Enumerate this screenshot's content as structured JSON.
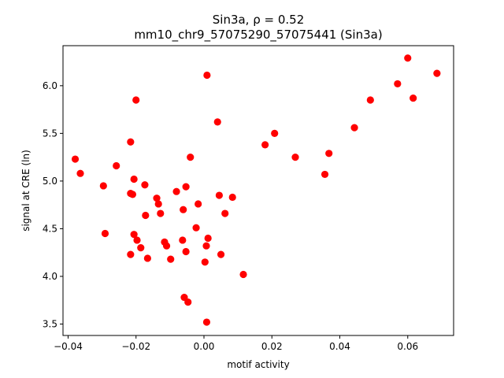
{
  "chart_data": {
    "type": "scatter",
    "title_line1": "Sin3a, ρ = 0.52",
    "title_line2": "mm10_chr9_57075290_57075441 (Sin3a)",
    "xlabel": "motif activity",
    "ylabel": "signal at CRE (ln)",
    "xlim": [
      -0.0415,
      0.0735
    ],
    "ylim": [
      3.38,
      6.42
    ],
    "xticks": [
      {
        "value": -0.04,
        "label": "−0.04"
      },
      {
        "value": -0.02,
        "label": "−0.02"
      },
      {
        "value": 0.0,
        "label": "0.00"
      },
      {
        "value": 0.02,
        "label": "0.02"
      },
      {
        "value": 0.04,
        "label": "0.04"
      },
      {
        "value": 0.06,
        "label": "0.06"
      }
    ],
    "yticks": [
      {
        "value": 3.5,
        "label": "3.5"
      },
      {
        "value": 4.0,
        "label": "4.0"
      },
      {
        "value": 4.5,
        "label": "4.5"
      },
      {
        "value": 5.0,
        "label": "5.0"
      },
      {
        "value": 5.5,
        "label": "5.5"
      },
      {
        "value": 6.0,
        "label": "6.0"
      }
    ],
    "marker_color": "#ff0000",
    "grid": false,
    "points": [
      {
        "x": -0.0379,
        "y": 5.23
      },
      {
        "x": -0.0364,
        "y": 5.08
      },
      {
        "x": -0.0296,
        "y": 4.95
      },
      {
        "x": -0.0291,
        "y": 4.45
      },
      {
        "x": -0.0258,
        "y": 5.16
      },
      {
        "x": -0.0216,
        "y": 5.41
      },
      {
        "x": -0.0216,
        "y": 4.87
      },
      {
        "x": -0.021,
        "y": 4.86
      },
      {
        "x": -0.0206,
        "y": 4.44
      },
      {
        "x": -0.0216,
        "y": 4.23
      },
      {
        "x": -0.0206,
        "y": 5.02
      },
      {
        "x": -0.02,
        "y": 5.85
      },
      {
        "x": -0.0197,
        "y": 4.38
      },
      {
        "x": -0.0186,
        "y": 4.3
      },
      {
        "x": -0.0174,
        "y": 4.96
      },
      {
        "x": -0.0172,
        "y": 4.64
      },
      {
        "x": -0.0166,
        "y": 4.19
      },
      {
        "x": -0.0139,
        "y": 4.82
      },
      {
        "x": -0.0134,
        "y": 4.76
      },
      {
        "x": -0.0128,
        "y": 4.66
      },
      {
        "x": -0.0116,
        "y": 4.36
      },
      {
        "x": -0.011,
        "y": 4.32
      },
      {
        "x": -0.0098,
        "y": 4.18
      },
      {
        "x": -0.0081,
        "y": 4.89
      },
      {
        "x": -0.0063,
        "y": 4.38
      },
      {
        "x": -0.0061,
        "y": 4.7
      },
      {
        "x": -0.0053,
        "y": 4.94
      },
      {
        "x": -0.0053,
        "y": 4.26
      },
      {
        "x": -0.0058,
        "y": 3.78
      },
      {
        "x": -0.0047,
        "y": 3.73
      },
      {
        "x": -0.004,
        "y": 5.25
      },
      {
        "x": -0.0023,
        "y": 4.51
      },
      {
        "x": -0.0017,
        "y": 4.76
      },
      {
        "x": 0.0003,
        "y": 4.15
      },
      {
        "x": 0.0007,
        "y": 4.32
      },
      {
        "x": 0.0009,
        "y": 6.11
      },
      {
        "x": 0.0012,
        "y": 4.4
      },
      {
        "x": 0.0008,
        "y": 3.52
      },
      {
        "x": 0.004,
        "y": 5.62
      },
      {
        "x": 0.0045,
        "y": 4.85
      },
      {
        "x": 0.005,
        "y": 4.23
      },
      {
        "x": 0.0062,
        "y": 4.66
      },
      {
        "x": 0.0084,
        "y": 4.83
      },
      {
        "x": 0.0116,
        "y": 4.02
      },
      {
        "x": 0.018,
        "y": 5.38
      },
      {
        "x": 0.0208,
        "y": 5.5
      },
      {
        "x": 0.0269,
        "y": 5.25
      },
      {
        "x": 0.0356,
        "y": 5.07
      },
      {
        "x": 0.0368,
        "y": 5.29
      },
      {
        "x": 0.0443,
        "y": 5.56
      },
      {
        "x": 0.049,
        "y": 5.85
      },
      {
        "x": 0.057,
        "y": 6.02
      },
      {
        "x": 0.06,
        "y": 6.29
      },
      {
        "x": 0.0616,
        "y": 5.87
      },
      {
        "x": 0.0686,
        "y": 6.13
      }
    ]
  }
}
